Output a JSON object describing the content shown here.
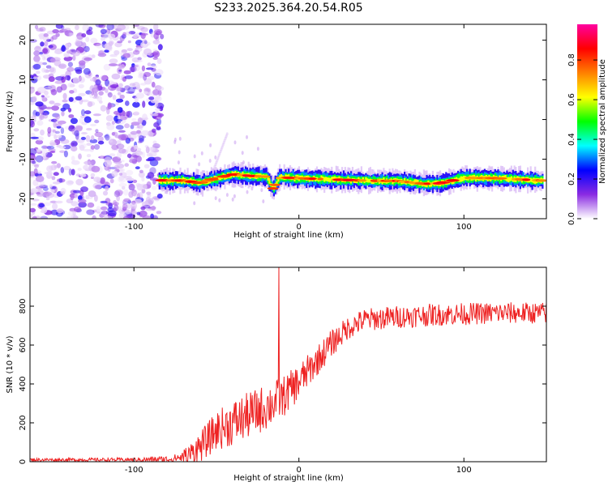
{
  "title": "S233.2025.364.20.54.R05",
  "chart_data": [
    {
      "type": "heatmap",
      "id": "spectrogram",
      "xlabel": "Height of straight line (km)",
      "ylabel": "Frequency (Hz)",
      "xlim": [
        -163,
        150
      ],
      "ylim": [
        -25,
        24
      ],
      "xticks": [
        -100,
        0,
        100
      ],
      "yticks": [
        20,
        10,
        0,
        -10,
        -20
      ],
      "noise_region_x": [
        -163,
        -83
      ],
      "signal_band": {
        "x_start": -85,
        "x_end": 148,
        "center_freq": [
          [
            -85,
            -15.3
          ],
          [
            -70,
            -15.4
          ],
          [
            -60,
            -16.0
          ],
          [
            -52,
            -15.0
          ],
          [
            -40,
            -13.8
          ],
          [
            -30,
            -14.2
          ],
          [
            -20,
            -14.4
          ],
          [
            -16,
            -17.5
          ],
          [
            -12,
            -14.6
          ],
          [
            0,
            -14.8
          ],
          [
            40,
            -15.4
          ],
          [
            60,
            -15.5
          ],
          [
            75,
            -16.2
          ],
          [
            85,
            -16.1
          ],
          [
            100,
            -14.7
          ],
          [
            120,
            -14.8
          ],
          [
            148,
            -15.4
          ]
        ],
        "peak_amplitude": 0.9
      },
      "colorbar": {
        "label": "Normalized spectral amplitude",
        "range": [
          0,
          0.98
        ],
        "ticks": [
          "0.0",
          "0.2",
          "0.4",
          "0.6",
          "0.8"
        ],
        "colors": [
          "#ffffff",
          "#8a2be2",
          "#0000ff",
          "#00ffff",
          "#00ff00",
          "#ffff00",
          "#ff8000",
          "#ff0000",
          "#ff00a0"
        ]
      }
    },
    {
      "type": "line",
      "id": "snr",
      "xlabel": "Height of straight line (km)",
      "ylabel": "SNR (10 * v/v)",
      "xlim": [
        -163,
        150
      ],
      "ylim": [
        0,
        1000
      ],
      "xticks": [
        -100,
        0,
        100
      ],
      "yticks": [
        0,
        200,
        400,
        600,
        800
      ],
      "color": "#ee2222",
      "envelope": [
        [
          -163,
          10
        ],
        [
          -110,
          10
        ],
        [
          -80,
          12
        ],
        [
          -70,
          25
        ],
        [
          -65,
          45
        ],
        [
          -58,
          90
        ],
        [
          -50,
          160
        ],
        [
          -40,
          200
        ],
        [
          -30,
          240
        ],
        [
          -20,
          280
        ],
        [
          -10,
          330
        ],
        [
          0,
          410
        ],
        [
          10,
          510
        ],
        [
          20,
          610
        ],
        [
          30,
          690
        ],
        [
          40,
          730
        ],
        [
          60,
          745
        ],
        [
          80,
          755
        ],
        [
          100,
          760
        ],
        [
          120,
          765
        ],
        [
          150,
          765
        ]
      ],
      "noise": [
        [
          -163,
          8
        ],
        [
          -100,
          10
        ],
        [
          -75,
          20
        ],
        [
          -60,
          80
        ],
        [
          -40,
          120
        ],
        [
          -20,
          120
        ],
        [
          -5,
          100
        ],
        [
          10,
          80
        ],
        [
          30,
          60
        ],
        [
          150,
          55
        ]
      ],
      "spike": {
        "x": -12,
        "y": 1000
      }
    }
  ]
}
